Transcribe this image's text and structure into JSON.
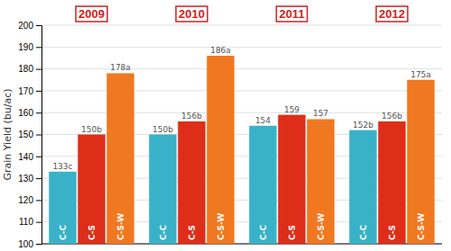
{
  "chart_data": {
    "type": "bar",
    "ylabel": "Grain Yield (bu/ac)",
    "categories": [
      "2009",
      "2010",
      "2011",
      "2012"
    ],
    "series": [
      {
        "name": "C-C",
        "color": "#39b2c8",
        "values": [
          133,
          150,
          154,
          152
        ],
        "value_labels": [
          "133c",
          "150b",
          "154",
          "152b"
        ]
      },
      {
        "name": "C-S",
        "color": "#de2e1a",
        "values": [
          150,
          156,
          159,
          156
        ],
        "value_labels": [
          "150b",
          "156b",
          "159",
          "156b"
        ]
      },
      {
        "name": "C-S-W",
        "color": "#f07820",
        "values": [
          178,
          186,
          157,
          175
        ],
        "value_labels": [
          "178a",
          "186a",
          "157",
          "175a"
        ]
      }
    ],
    "ylim": [
      100,
      200
    ],
    "yticks": [
      100,
      110,
      120,
      130,
      140,
      150,
      160,
      170,
      180,
      190,
      200
    ],
    "grid": true,
    "data_labels": true
  }
}
